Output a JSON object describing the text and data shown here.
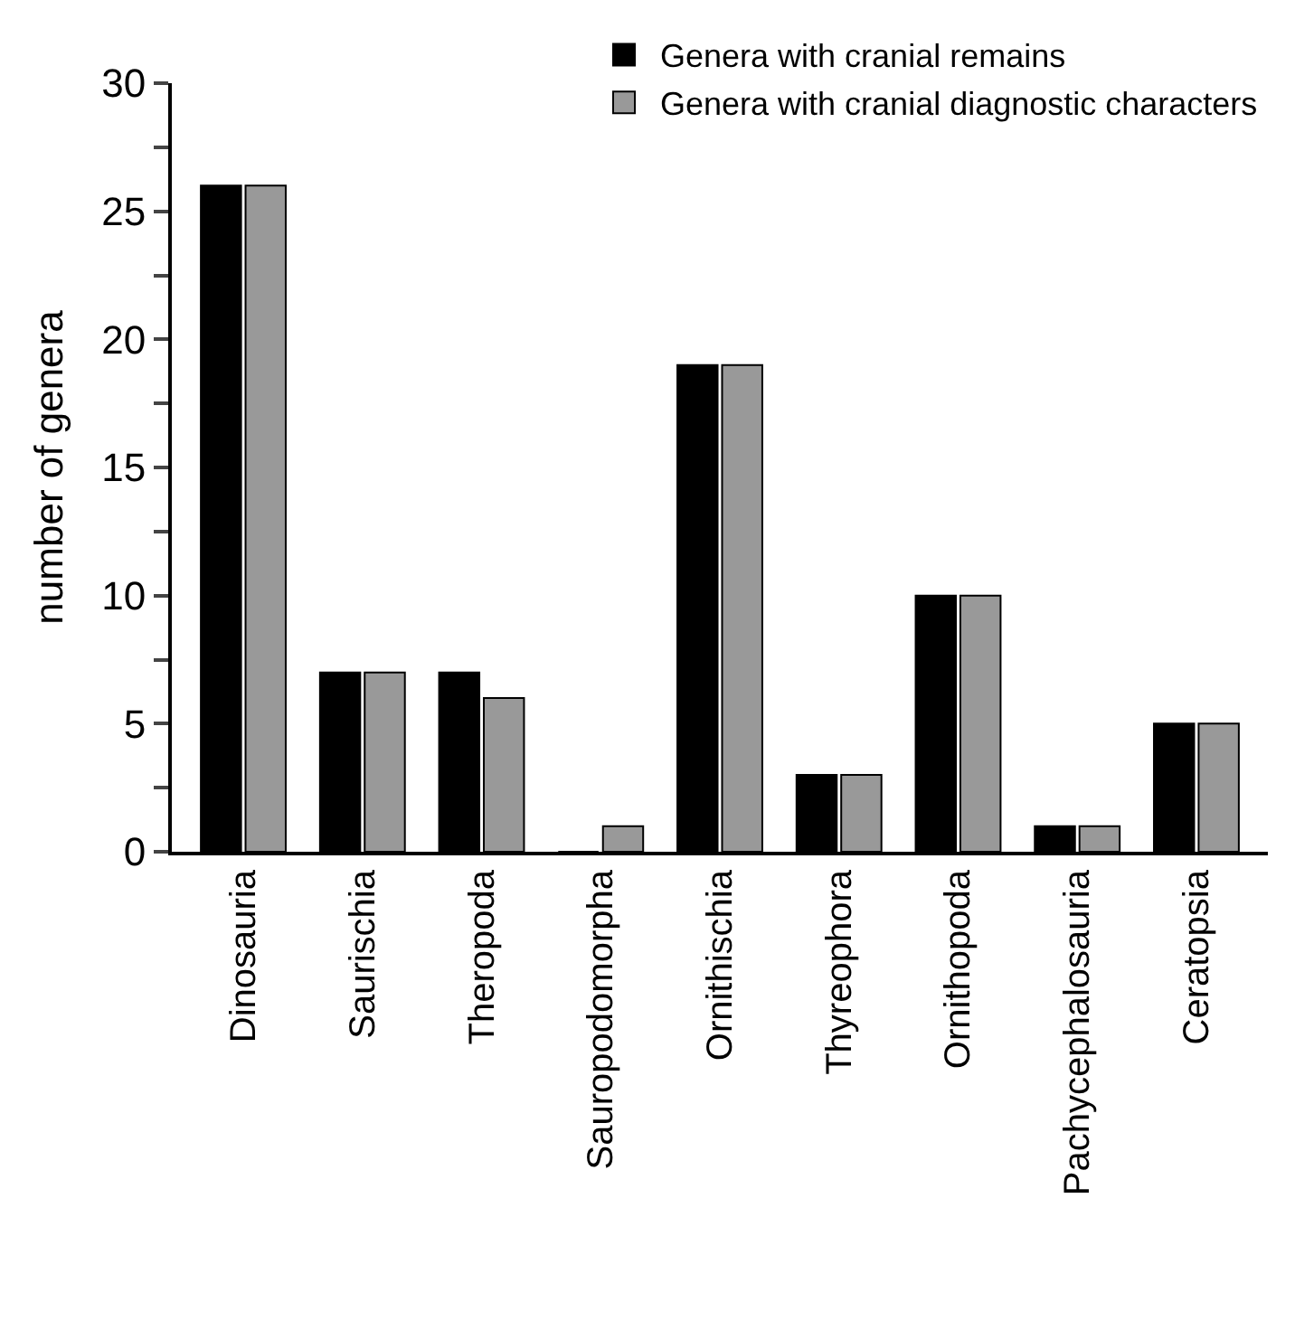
{
  "chart_data": {
    "type": "bar",
    "ylabel": "number of genera",
    "categories": [
      "Dinosauria",
      "Saurischia",
      "Theropoda",
      "Sauropodomorpha",
      "Ornithischia",
      "Thyreophora",
      "Ornithopoda",
      "Pachycephalosauria",
      "Ceratopsia"
    ],
    "series": [
      {
        "name": "Genera with cranial remains",
        "color": "#000000",
        "values": [
          26,
          7,
          7,
          0,
          19,
          3,
          10,
          1,
          5
        ]
      },
      {
        "name": "Genera with cranial diagnostic characters",
        "color": "#999999",
        "values": [
          26,
          7,
          6,
          1,
          19,
          3,
          10,
          1,
          5
        ]
      }
    ],
    "ylim": [
      0,
      30
    ],
    "yticks": [
      0,
      {
        "value": 2.5,
        "label": null
      },
      5,
      {
        "value": 7.5,
        "label": null
      },
      10,
      {
        "value": 12.5,
        "label": null
      },
      15,
      {
        "value": 17.5,
        "label": null
      },
      20,
      {
        "value": 22.5,
        "label": null
      },
      25,
      {
        "value": 27.5,
        "label": null
      },
      30
    ],
    "legend": "top right"
  }
}
